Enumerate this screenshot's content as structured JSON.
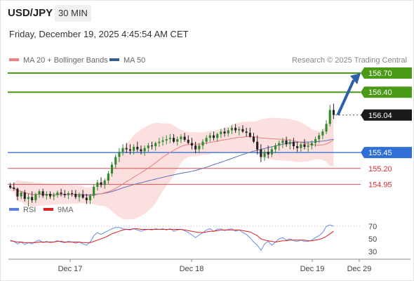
{
  "header": {
    "symbol": "USD/JPY",
    "timeframe": "30 MIN",
    "datetime": "Friday, December 19, 2025 4:45:54 AM CET",
    "attribution": "Research © 2025 Trading Central"
  },
  "legend": {
    "bollinger": {
      "label": "MA 20 + Bollinger Bands",
      "color": "#f08080"
    },
    "ma50": {
      "label": "MA 50",
      "color": "#335c99"
    }
  },
  "rsi_legend": {
    "rsi": {
      "label": "RSI",
      "color": "#5b7fdb"
    },
    "ma9": {
      "label": "9MA",
      "color": "#e02020"
    }
  },
  "chart_data": [
    {
      "type": "candlestick",
      "title": "USD/JPY 30 MIN",
      "x_labels": [
        "Dec 17",
        "Dec 18",
        "Dec 19",
        "Dec 29"
      ],
      "ylim": [
        154.7,
        156.8
      ],
      "current_price": 156.04,
      "projection_target": 156.7,
      "levels": [
        {
          "value": 156.7,
          "label": "156.70",
          "type": "resistance",
          "color": "#4a9a17"
        },
        {
          "value": 156.4,
          "label": "156.40",
          "type": "resistance",
          "color": "#4a9a17"
        },
        {
          "value": 156.04,
          "label": "156.04",
          "type": "current",
          "color": "#333333"
        },
        {
          "value": 155.45,
          "label": "155.45",
          "type": "pivot",
          "color": "#4a7fd4"
        },
        {
          "value": 155.2,
          "label": "155.20",
          "type": "support",
          "color": "#e05050"
        },
        {
          "value": 154.95,
          "label": "154.95",
          "type": "support",
          "color": "#e05050"
        }
      ],
      "series_ohlc": [
        [
          154.93,
          154.97,
          154.88,
          154.9
        ],
        [
          154.9,
          154.98,
          154.85,
          154.88
        ],
        [
          154.88,
          154.9,
          154.7,
          154.76
        ],
        [
          154.76,
          154.84,
          154.72,
          154.82
        ],
        [
          154.82,
          154.86,
          154.68,
          154.72
        ],
        [
          154.72,
          154.8,
          154.6,
          154.75
        ],
        [
          154.75,
          154.84,
          154.66,
          154.7
        ],
        [
          154.7,
          154.82,
          154.66,
          154.79
        ],
        [
          154.79,
          154.87,
          154.74,
          154.84
        ],
        [
          154.84,
          154.88,
          154.74,
          154.77
        ],
        [
          154.77,
          154.84,
          154.71,
          154.8
        ],
        [
          154.8,
          154.84,
          154.72,
          154.76
        ],
        [
          154.76,
          154.82,
          154.7,
          154.78
        ],
        [
          154.78,
          154.85,
          154.74,
          154.82
        ],
        [
          154.82,
          154.88,
          154.76,
          154.8
        ],
        [
          154.8,
          154.86,
          154.74,
          154.78
        ],
        [
          154.78,
          154.84,
          154.72,
          154.81
        ],
        [
          154.81,
          154.86,
          154.76,
          154.8
        ],
        [
          154.8,
          154.86,
          154.72,
          154.75
        ],
        [
          154.75,
          154.82,
          154.68,
          154.79
        ],
        [
          154.79,
          154.86,
          154.72,
          154.74
        ],
        [
          154.74,
          154.8,
          154.64,
          154.7
        ],
        [
          154.7,
          154.8,
          154.64,
          154.77
        ],
        [
          154.77,
          154.95,
          154.73,
          154.91
        ],
        [
          154.91,
          155.02,
          154.85,
          154.98
        ],
        [
          154.98,
          155.06,
          154.9,
          154.94
        ],
        [
          154.94,
          155.04,
          154.88,
          155.01
        ],
        [
          155.01,
          155.16,
          154.96,
          155.12
        ],
        [
          155.12,
          155.3,
          155.07,
          155.26
        ],
        [
          155.26,
          155.42,
          155.2,
          155.38
        ],
        [
          155.38,
          155.52,
          155.3,
          155.46
        ],
        [
          155.46,
          155.58,
          155.4,
          155.52
        ],
        [
          155.52,
          155.6,
          155.44,
          155.5
        ],
        [
          155.5,
          155.58,
          155.42,
          155.48
        ],
        [
          155.48,
          155.58,
          155.42,
          155.54
        ],
        [
          155.54,
          155.62,
          155.46,
          155.5
        ],
        [
          155.5,
          155.56,
          155.42,
          155.47
        ],
        [
          155.47,
          155.56,
          155.4,
          155.52
        ],
        [
          155.52,
          155.6,
          155.46,
          155.56
        ],
        [
          155.56,
          155.62,
          155.5,
          155.55
        ],
        [
          155.55,
          155.62,
          155.48,
          155.6
        ],
        [
          155.6,
          155.68,
          155.54,
          155.62
        ],
        [
          155.62,
          155.7,
          155.56,
          155.64
        ],
        [
          155.64,
          155.72,
          155.58,
          155.66
        ],
        [
          155.66,
          155.74,
          155.6,
          155.68
        ],
        [
          155.68,
          155.74,
          155.6,
          155.62
        ],
        [
          155.62,
          155.7,
          155.56,
          155.66
        ],
        [
          155.66,
          155.74,
          155.6,
          155.7
        ],
        [
          155.7,
          155.76,
          155.62,
          155.65
        ],
        [
          155.65,
          155.72,
          155.58,
          155.6
        ],
        [
          155.6,
          155.68,
          155.5,
          155.56
        ],
        [
          155.56,
          155.62,
          155.44,
          155.5
        ],
        [
          155.5,
          155.6,
          155.44,
          155.56
        ],
        [
          155.56,
          155.66,
          155.5,
          155.62
        ],
        [
          155.62,
          155.72,
          155.58,
          155.68
        ],
        [
          155.68,
          155.76,
          155.62,
          155.72
        ],
        [
          155.72,
          155.78,
          155.64,
          155.68
        ],
        [
          155.68,
          155.76,
          155.62,
          155.74
        ],
        [
          155.74,
          155.82,
          155.68,
          155.78
        ],
        [
          155.78,
          155.84,
          155.7,
          155.75
        ],
        [
          155.75,
          155.84,
          155.7,
          155.8
        ],
        [
          155.8,
          155.88,
          155.74,
          155.84
        ],
        [
          155.84,
          155.9,
          155.76,
          155.8
        ],
        [
          155.8,
          155.86,
          155.72,
          155.82
        ],
        [
          155.82,
          155.88,
          155.76,
          155.78
        ],
        [
          155.78,
          155.84,
          155.7,
          155.76
        ],
        [
          155.76,
          155.84,
          155.68,
          155.7
        ],
        [
          155.7,
          155.76,
          155.6,
          155.62
        ],
        [
          155.62,
          155.72,
          155.42,
          155.5
        ],
        [
          155.5,
          155.58,
          155.3,
          155.38
        ],
        [
          155.38,
          155.5,
          155.32,
          155.46
        ],
        [
          155.46,
          155.56,
          155.36,
          155.42
        ],
        [
          155.42,
          155.54,
          155.38,
          155.5
        ],
        [
          155.5,
          155.6,
          155.44,
          155.56
        ],
        [
          155.56,
          155.64,
          155.48,
          155.6
        ],
        [
          155.6,
          155.68,
          155.52,
          155.64
        ],
        [
          155.64,
          155.7,
          155.54,
          155.58
        ],
        [
          155.58,
          155.66,
          155.5,
          155.62
        ],
        [
          155.62,
          155.68,
          155.5,
          155.55
        ],
        [
          155.55,
          155.62,
          155.46,
          155.52
        ],
        [
          155.52,
          155.62,
          155.46,
          155.58
        ],
        [
          155.58,
          155.66,
          155.5,
          155.54
        ],
        [
          155.54,
          155.62,
          155.46,
          155.56
        ],
        [
          155.56,
          155.64,
          155.5,
          155.6
        ],
        [
          155.6,
          155.7,
          155.54,
          155.66
        ],
        [
          155.66,
          155.76,
          155.6,
          155.72
        ],
        [
          155.72,
          155.82,
          155.66,
          155.78
        ],
        [
          155.78,
          155.96,
          155.74,
          155.9
        ],
        [
          155.9,
          156.2,
          155.86,
          156.12
        ],
        [
          156.12,
          156.22,
          155.98,
          156.04
        ]
      ]
    },
    {
      "type": "line",
      "title": "RSI",
      "ylim": [
        20,
        80
      ],
      "y_ticks": [
        70,
        50,
        30
      ],
      "series": [
        {
          "name": "RSI",
          "values": [
            48,
            46,
            42,
            45,
            41,
            44,
            42,
            46,
            48,
            44,
            46,
            44,
            45,
            47,
            45,
            44,
            46,
            45,
            43,
            45,
            42,
            40,
            45,
            55,
            60,
            57,
            60,
            63,
            66,
            68,
            68,
            66,
            65,
            64,
            66,
            64,
            62,
            64,
            65,
            64,
            66,
            65,
            66,
            64,
            66,
            62,
            64,
            65,
            63,
            60,
            56,
            52,
            56,
            60,
            64,
            66,
            62,
            65,
            66,
            63,
            65,
            66,
            62,
            64,
            60,
            57,
            52,
            45,
            40,
            32,
            42,
            46,
            40,
            45,
            50,
            52,
            48,
            50,
            47,
            46,
            48,
            46,
            46,
            48,
            52,
            55,
            60,
            70,
            72,
            70
          ]
        },
        {
          "name": "9MA",
          "values": [
            47,
            46,
            45,
            45,
            44,
            44,
            44,
            44,
            45,
            45,
            45,
            45,
            45,
            46,
            46,
            45,
            45,
            45,
            45,
            45,
            44,
            44,
            44,
            46,
            48,
            50,
            52,
            55,
            58,
            60,
            62,
            64,
            65,
            65,
            66,
            66,
            65,
            65,
            65,
            65,
            65,
            65,
            65,
            65,
            65,
            65,
            65,
            65,
            64,
            63,
            62,
            61,
            60,
            60,
            61,
            62,
            62,
            63,
            64,
            64,
            64,
            64,
            64,
            64,
            63,
            62,
            61,
            58,
            55,
            50,
            48,
            47,
            46,
            45,
            46,
            47,
            47,
            48,
            48,
            48,
            48,
            48,
            47,
            47,
            48,
            49,
            51,
            54,
            58,
            62
          ]
        }
      ]
    }
  ]
}
